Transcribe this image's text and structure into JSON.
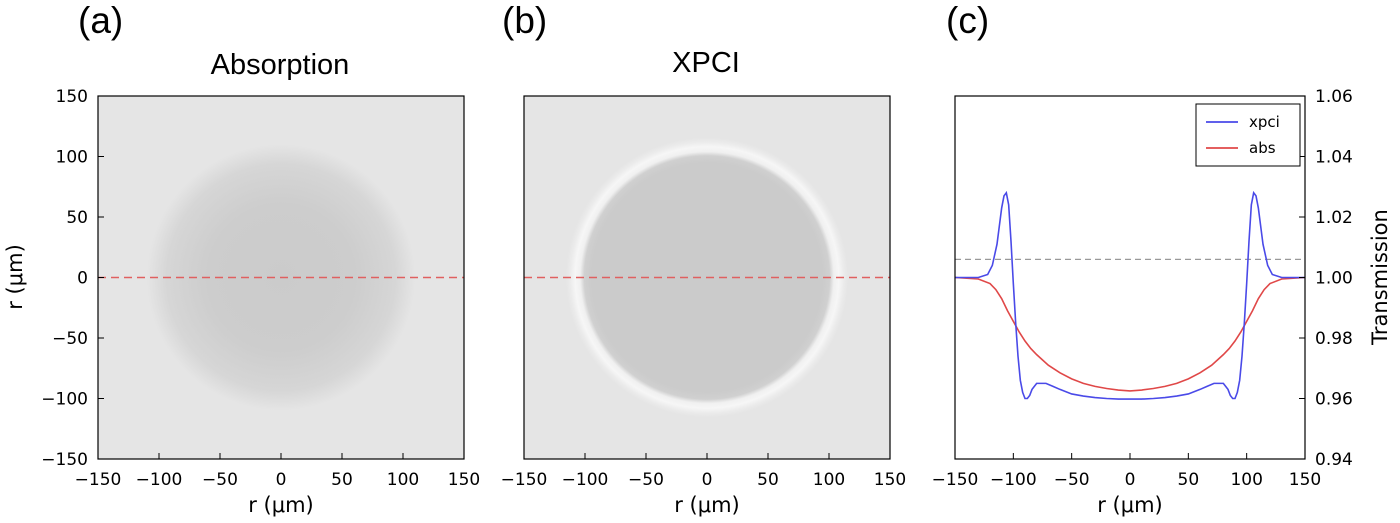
{
  "chart_data": [
    {
      "type": "heatmap",
      "panel_label": "(a)",
      "title": "Absorption",
      "xlabel": "r (μm)",
      "ylabel": "r (μm)",
      "xlim": [
        -150,
        150
      ],
      "ylim": [
        -150,
        150
      ],
      "xticks": [
        -150,
        -100,
        -50,
        0,
        50,
        100,
        150
      ],
      "yticks": [
        -150,
        -100,
        -50,
        0,
        50,
        100,
        150
      ],
      "image": {
        "shape": "disk",
        "radius": 110,
        "edge": "smooth gradient",
        "background_color": "#e5e5e5",
        "center_color": "#cbcbcb"
      },
      "reference_line": {
        "axis": "y",
        "value": 0,
        "style": "dashed",
        "color": "#e06060"
      }
    },
    {
      "type": "heatmap",
      "panel_label": "(b)",
      "title": "XPCI",
      "xlabel": "r (μm)",
      "xlim": [
        -150,
        150
      ],
      "ylim": [
        -150,
        150
      ],
      "xticks": [
        -150,
        -100,
        -50,
        0,
        50,
        100,
        150
      ],
      "image": {
        "shape": "disk",
        "radius": 100,
        "edge": "bright halo ring",
        "halo_radius": 108,
        "background_color": "#e5e5e5",
        "center_color": "#cbcbcb"
      },
      "reference_line": {
        "axis": "y",
        "value": 0,
        "style": "dashed",
        "color": "#e06060"
      }
    },
    {
      "type": "line",
      "panel_label": "(c)",
      "xlabel": "r (μm)",
      "ylabel": "Transmission",
      "xlim": [
        -150,
        150
      ],
      "ylim": [
        0.94,
        1.06
      ],
      "xticks": [
        -150,
        -100,
        -50,
        0,
        50,
        100,
        150
      ],
      "yticks": [
        "0.94",
        "0.96",
        "0.98",
        "1.00",
        "1.02",
        "1.04",
        "1.06"
      ],
      "y_axis_side": "right",
      "legend": "top-right",
      "reference_line": {
        "axis": "y",
        "value": 1.006,
        "style": "dashed",
        "color": "#999999"
      },
      "series": [
        {
          "name": "xpci",
          "color": "#4a4ae8",
          "x": [
            -150,
            -130,
            -122,
            -118,
            -114,
            -112,
            -110,
            -108,
            -106,
            -104,
            -102,
            -100,
            -98,
            -96,
            -94,
            -92,
            -90,
            -88,
            -86,
            -84,
            -82,
            -80,
            -76,
            -72,
            -66,
            -60,
            -50,
            -40,
            -30,
            -20,
            -10,
            0,
            10,
            20,
            30,
            40,
            50,
            60,
            66,
            72,
            76,
            80,
            82,
            84,
            86,
            88,
            90,
            92,
            94,
            96,
            98,
            100,
            102,
            104,
            106,
            108,
            110,
            112,
            114,
            118,
            122,
            130,
            150
          ],
          "y": [
            1.0,
            1.0,
            1.001,
            1.004,
            1.011,
            1.017,
            1.023,
            1.027,
            1.028,
            1.024,
            1.012,
            0.998,
            0.985,
            0.974,
            0.966,
            0.962,
            0.96,
            0.96,
            0.961,
            0.963,
            0.964,
            0.965,
            0.965,
            0.965,
            0.964,
            0.963,
            0.9615,
            0.9608,
            0.9603,
            0.96,
            0.9598,
            0.9598,
            0.9598,
            0.96,
            0.9603,
            0.9608,
            0.9615,
            0.963,
            0.964,
            0.965,
            0.965,
            0.965,
            0.964,
            0.963,
            0.961,
            0.96,
            0.96,
            0.962,
            0.966,
            0.974,
            0.985,
            0.998,
            1.012,
            1.024,
            1.028,
            1.027,
            1.023,
            1.017,
            1.011,
            1.004,
            1.001,
            1.0,
            1.0
          ]
        },
        {
          "name": "abs",
          "color": "#e04848",
          "x": [
            -150,
            -130,
            -120,
            -115,
            -110,
            -105,
            -100,
            -95,
            -90,
            -85,
            -80,
            -70,
            -60,
            -50,
            -40,
            -30,
            -20,
            -10,
            0,
            10,
            20,
            30,
            40,
            50,
            60,
            70,
            80,
            85,
            90,
            95,
            100,
            105,
            110,
            115,
            120,
            130,
            150
          ],
          "y": [
            1.0,
            0.9995,
            0.998,
            0.996,
            0.993,
            0.989,
            0.9855,
            0.982,
            0.979,
            0.9765,
            0.9745,
            0.971,
            0.9685,
            0.9665,
            0.965,
            0.964,
            0.9633,
            0.9628,
            0.9625,
            0.9628,
            0.9633,
            0.964,
            0.965,
            0.9665,
            0.9685,
            0.971,
            0.9745,
            0.9765,
            0.979,
            0.982,
            0.9855,
            0.989,
            0.993,
            0.996,
            0.998,
            0.9995,
            1.0
          ]
        }
      ]
    }
  ]
}
